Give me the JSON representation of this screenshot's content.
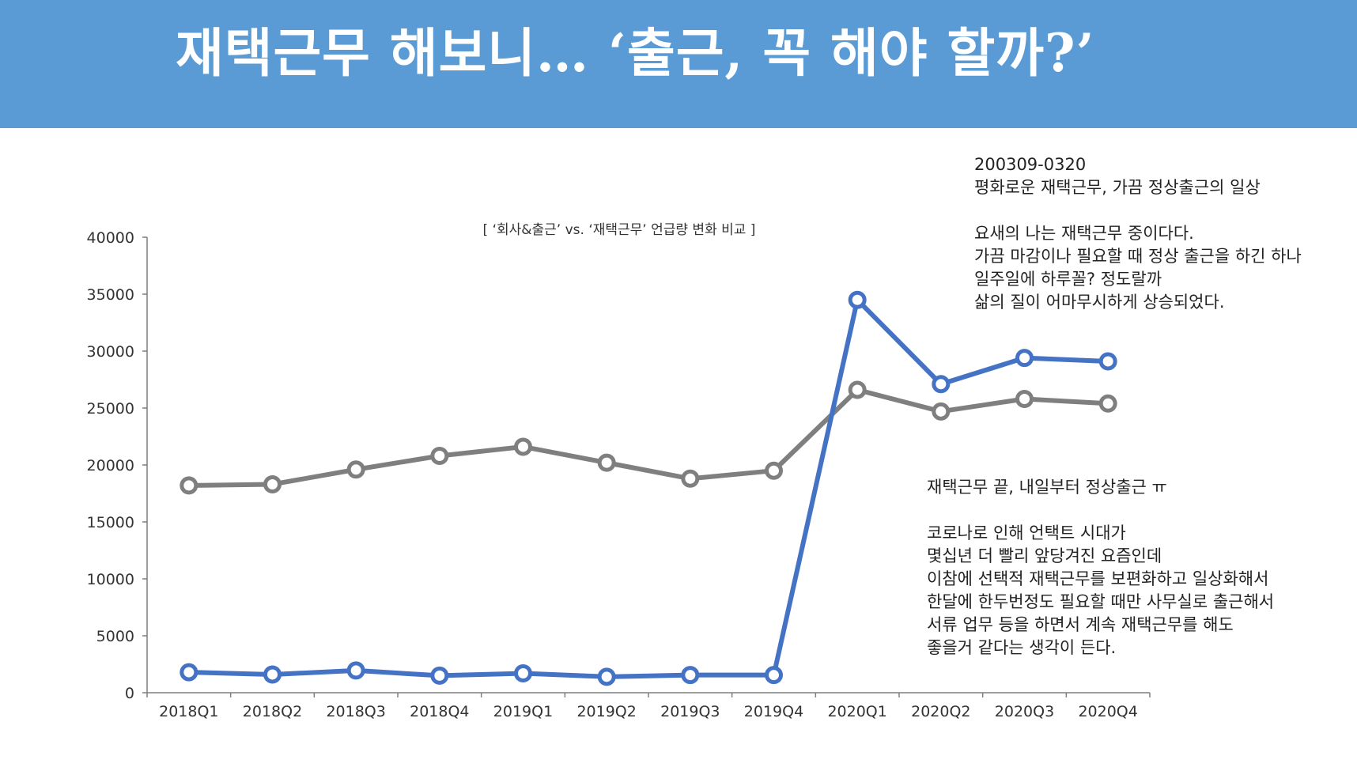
{
  "banner": {
    "title": "재택근무 해보니… ‘출근, 꼭 해야 할까?’"
  },
  "chart_data": {
    "type": "line",
    "title": "[ ‘회사&출근’ vs. ‘재택근무’  언급량 변화 비교 ]",
    "xlabel": "",
    "ylabel": "",
    "categories": [
      "2018Q1",
      "2018Q2",
      "2018Q3",
      "2018Q4",
      "2019Q1",
      "2019Q2",
      "2019Q3",
      "2019Q4",
      "2020Q1",
      "2020Q2",
      "2020Q3",
      "2020Q4"
    ],
    "series": [
      {
        "color": "#4472c4",
        "values": [
          1800,
          1600,
          1950,
          1500,
          1700,
          1400,
          1550,
          1550,
          34500,
          27100,
          29400,
          29100
        ]
      },
      {
        "color": "#7f7f7f",
        "values": [
          18200,
          18300,
          19600,
          20800,
          21600,
          20200,
          18800,
          19500,
          26600,
          24700,
          25800,
          25400
        ]
      }
    ],
    "yticks": [
      0,
      5000,
      10000,
      15000,
      20000,
      25000,
      30000,
      35000,
      40000
    ],
    "ylim": [
      0,
      40000
    ],
    "grid": false,
    "legend": "none"
  },
  "annotations": {
    "top": [
      "200309-0320",
      "평화로운 재택근무, 가끔 정상출근의 일상",
      "",
      "요새의 나는 재택근무 중이다다.",
      "가끔 마감이나 필요할 때 정상 출근을 하긴 하나",
      "일주일에 하루꼴?  정도랄까",
      "삶의 질이 어마무시하게 상승되었다."
    ],
    "bottom": [
      "재택근무 끝, 내일부터 정상출근 ㅠ",
      "",
      "코로나로 인해 언택트 시대가",
      "몇십년 더 빨리 앞당겨진 요즘인데",
      "이참에 선택적 재택근무를 보편화하고 일상화해서",
      "한달에 한두번정도 필요할 때만 사무실로 출근해서",
      "서류 업무 등을 하면서 계속 재택근무를 해도",
      "좋을거 같다는 생각이 든다."
    ]
  }
}
